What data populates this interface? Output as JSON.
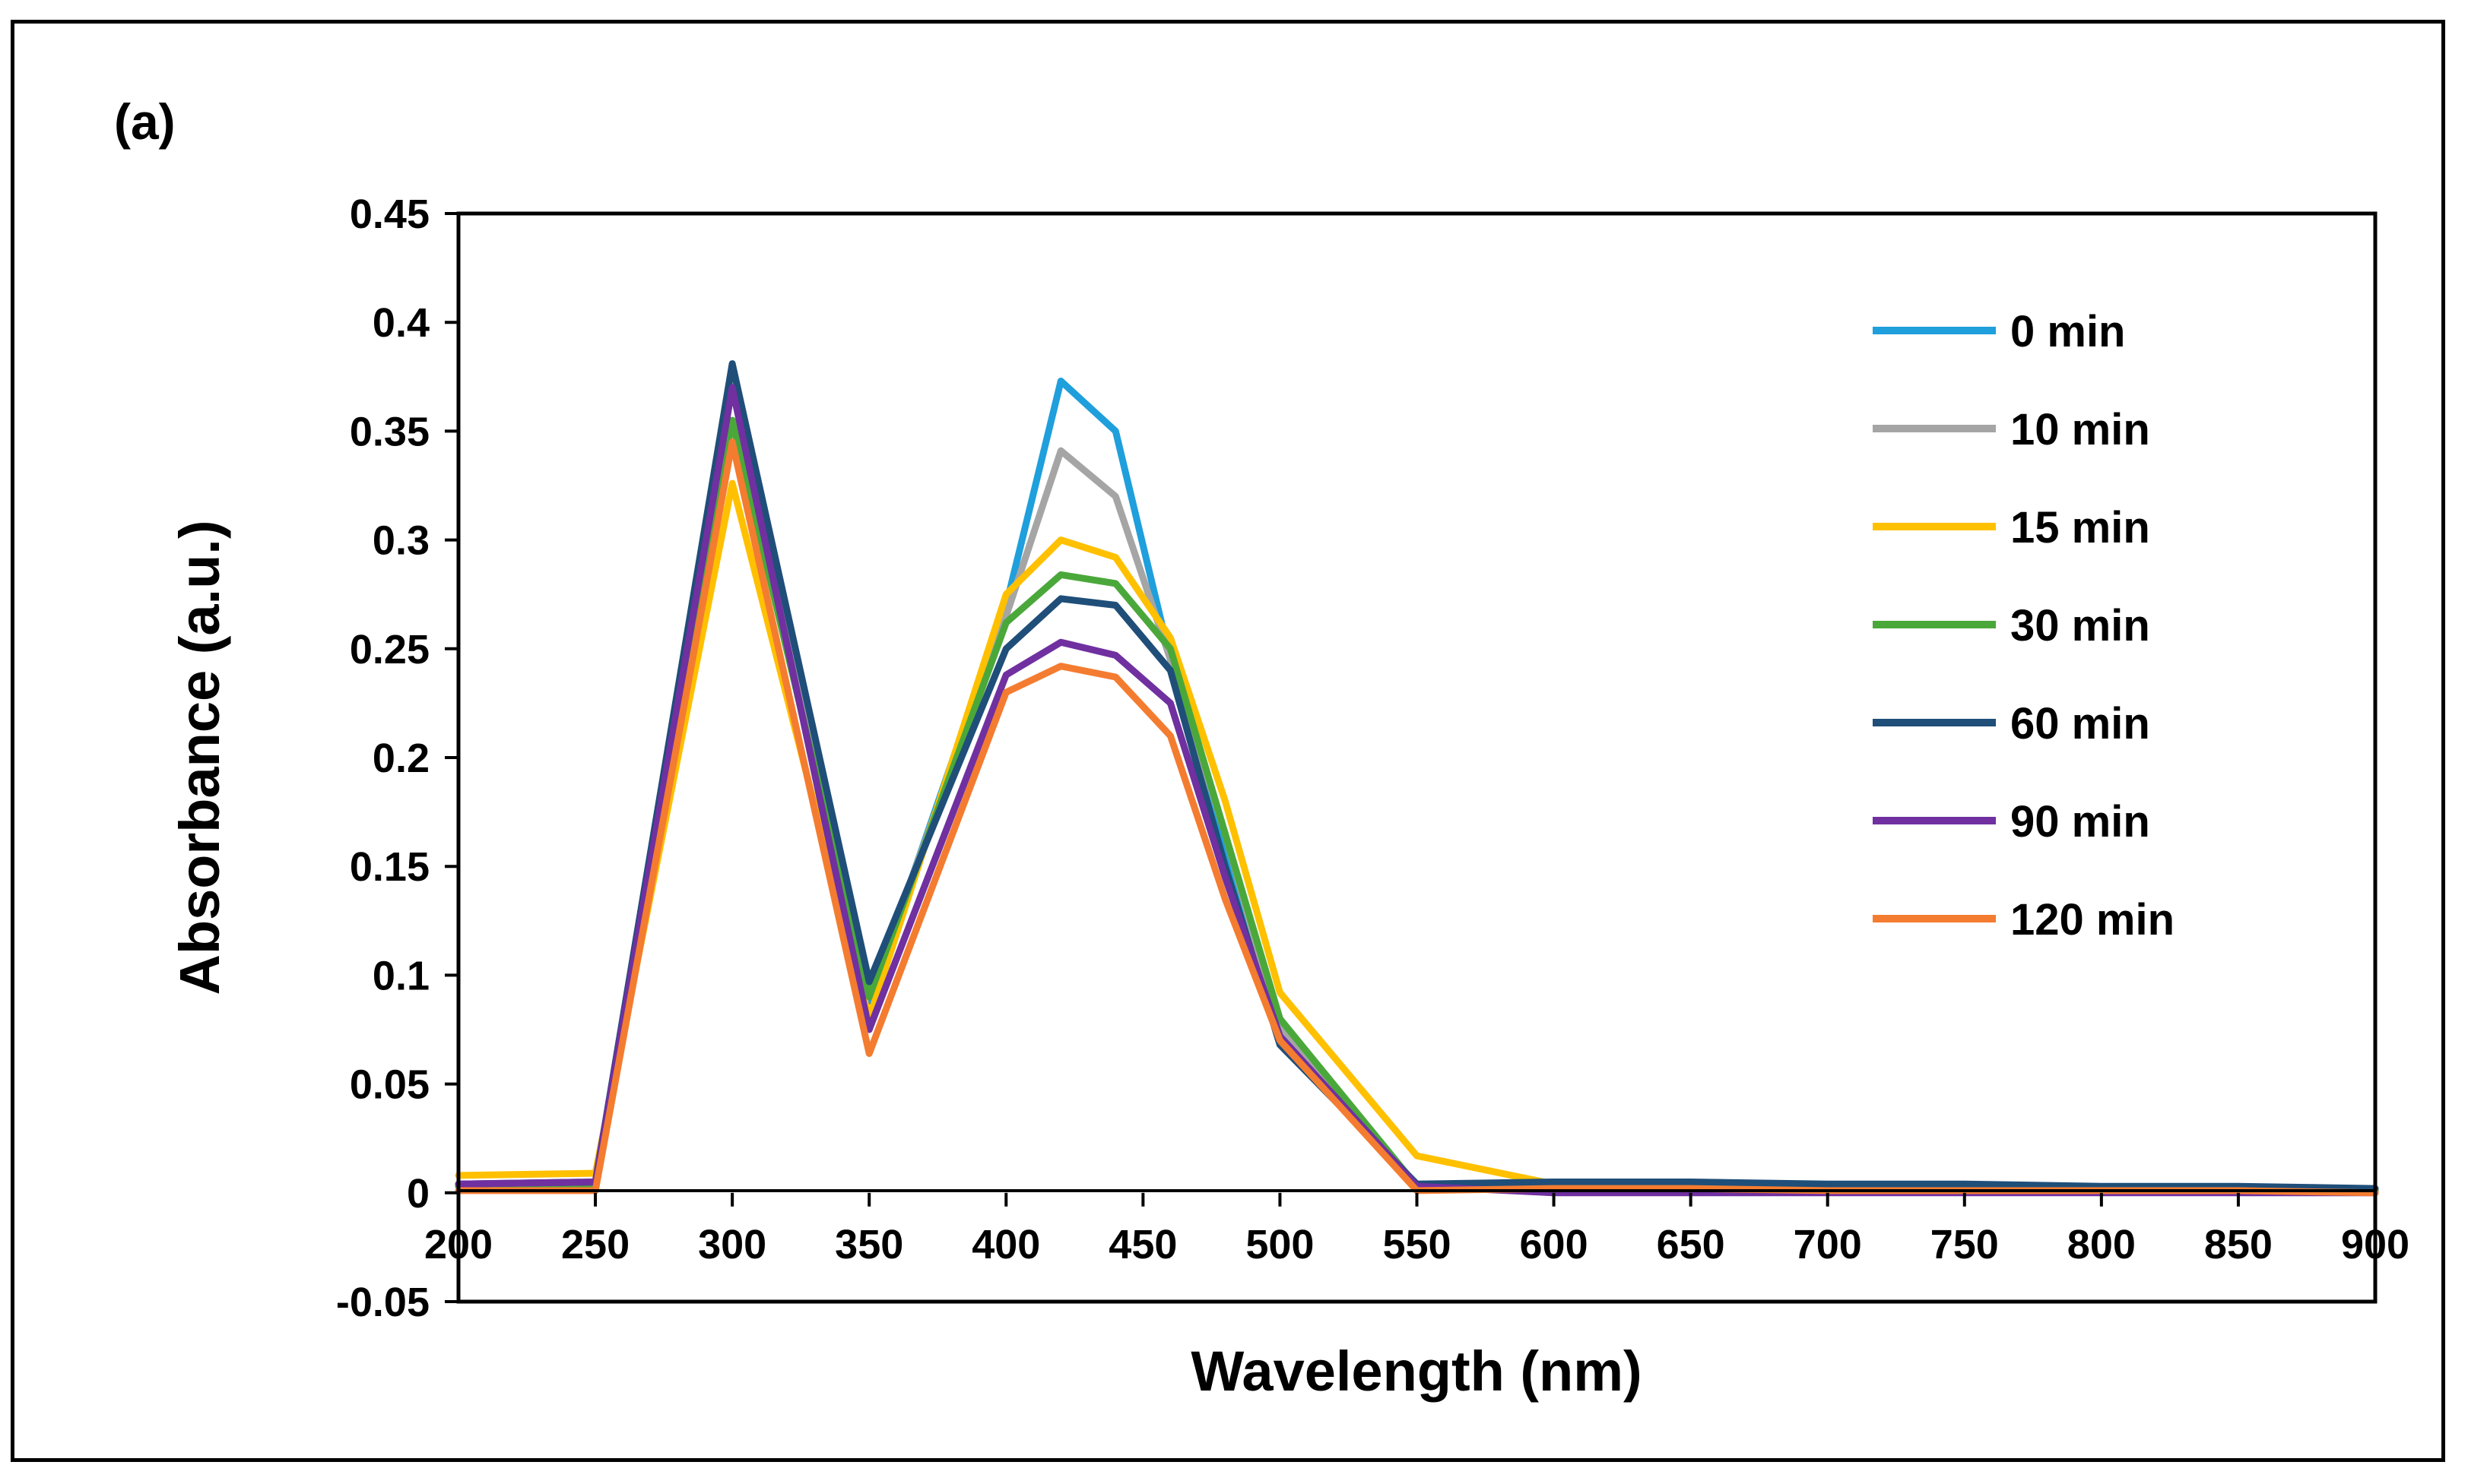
{
  "panel_label": "(a)",
  "chart_data": {
    "type": "line",
    "xlabel": "Wavelength (nm)",
    "ylabel": "Absorbance (a.u.)",
    "xlim": [
      200,
      900
    ],
    "ylim": [
      -0.05,
      0.45
    ],
    "x_ticks": [
      200,
      250,
      300,
      350,
      400,
      450,
      500,
      550,
      600,
      650,
      700,
      750,
      800,
      850,
      900
    ],
    "y_ticks": [
      -0.05,
      0,
      0.05,
      0.1,
      0.15,
      0.2,
      0.25,
      0.3,
      0.35,
      0.4,
      0.45
    ],
    "x_tick_labels": [
      "200",
      "250",
      "300",
      "350",
      "400",
      "450",
      "500",
      "550",
      "600",
      "650",
      "700",
      "750",
      "800",
      "850",
      "900"
    ],
    "y_tick_labels": [
      "-0.05",
      "0",
      "0.05",
      "0.1",
      "0.15",
      "0.2",
      "0.25",
      "0.3",
      "0.35",
      "0.4",
      "0.45"
    ],
    "grid": false,
    "legend_position": "top-right",
    "series": [
      {
        "name": "0 min",
        "color": "#1f9fdc",
        "x": [
          200,
          250,
          300,
          350,
          400,
          420,
          440,
          460,
          480,
          500,
          550,
          600,
          650,
          700,
          750,
          800,
          850,
          900
        ],
        "y": [
          0.003,
          0.004,
          0.378,
          0.088,
          0.27,
          0.373,
          0.35,
          0.245,
          0.16,
          0.072,
          0.003,
          0.003,
          0.003,
          0.002,
          0.002,
          0.002,
          0.001,
          0.001
        ]
      },
      {
        "name": "10 min",
        "color": "#a5a5a5",
        "x": [
          200,
          250,
          300,
          350,
          400,
          420,
          440,
          460,
          480,
          500,
          550,
          600,
          650,
          700,
          750,
          800,
          850,
          900
        ],
        "y": [
          0.003,
          0.004,
          0.372,
          0.09,
          0.265,
          0.341,
          0.32,
          0.245,
          0.165,
          0.075,
          0.003,
          0.003,
          0.003,
          0.002,
          0.002,
          0.002,
          0.001,
          0.001
        ]
      },
      {
        "name": "15 min",
        "color": "#ffc000",
        "x": [
          200,
          250,
          300,
          350,
          400,
          420,
          440,
          460,
          480,
          500,
          550,
          600,
          650,
          700,
          750,
          800,
          850,
          900
        ],
        "y": [
          0.008,
          0.009,
          0.326,
          0.08,
          0.275,
          0.3,
          0.292,
          0.255,
          0.18,
          0.092,
          0.017,
          0.004,
          0.003,
          0.002,
          0.002,
          0.002,
          0.001,
          0.001
        ]
      },
      {
        "name": "30 min",
        "color": "#4aa83a",
        "x": [
          200,
          250,
          300,
          350,
          400,
          420,
          440,
          460,
          480,
          500,
          550,
          600,
          650,
          700,
          750,
          800,
          850,
          900
        ],
        "y": [
          0.003,
          0.004,
          0.355,
          0.09,
          0.262,
          0.284,
          0.28,
          0.25,
          0.165,
          0.08,
          0.003,
          0.003,
          0.003,
          0.002,
          0.002,
          0.002,
          0.001,
          0.001
        ]
      },
      {
        "name": "60 min",
        "color": "#1f4e79",
        "x": [
          200,
          250,
          300,
          350,
          400,
          420,
          440,
          460,
          480,
          500,
          550,
          600,
          650,
          700,
          750,
          800,
          850,
          900
        ],
        "y": [
          0.004,
          0.005,
          0.381,
          0.097,
          0.25,
          0.273,
          0.27,
          0.24,
          0.15,
          0.068,
          0.004,
          0.005,
          0.005,
          0.004,
          0.004,
          0.003,
          0.003,
          0.002
        ]
      },
      {
        "name": "90 min",
        "color": "#7030a0",
        "x": [
          200,
          250,
          300,
          350,
          400,
          420,
          440,
          460,
          480,
          500,
          550,
          600,
          650,
          700,
          750,
          800,
          850,
          900
        ],
        "y": [
          0.004,
          0.005,
          0.37,
          0.075,
          0.238,
          0.253,
          0.247,
          0.225,
          0.145,
          0.072,
          0.003,
          0.0,
          0.0,
          0.0,
          0.0,
          0.0,
          0.0,
          0.0
        ]
      },
      {
        "name": "120 min",
        "color": "#f47c30",
        "x": [
          200,
          250,
          300,
          350,
          400,
          420,
          440,
          460,
          480,
          500,
          550,
          600,
          650,
          700,
          750,
          800,
          850,
          900
        ],
        "y": [
          0.001,
          0.001,
          0.345,
          0.064,
          0.23,
          0.242,
          0.237,
          0.21,
          0.135,
          0.07,
          0.001,
          0.002,
          0.002,
          0.001,
          0.001,
          0.001,
          0.001,
          0.0
        ]
      }
    ]
  }
}
